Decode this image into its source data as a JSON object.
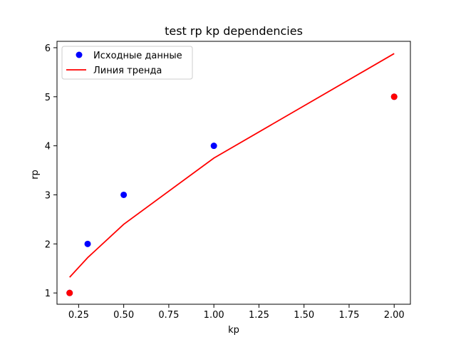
{
  "chart_data": {
    "type": "scatter",
    "title": "test rp kp dependencies",
    "xlabel": "kp",
    "ylabel": "rp",
    "xlim": [
      0.13,
      2.09
    ],
    "ylim": [
      0.77,
      6.13
    ],
    "xticks": [
      0.25,
      0.5,
      0.75,
      1.0,
      1.25,
      1.5,
      1.75,
      2.0
    ],
    "xtick_labels": [
      "0.25",
      "0.50",
      "0.75",
      "1.00",
      "1.25",
      "1.50",
      "1.75",
      "2.00"
    ],
    "yticks": [
      1,
      2,
      3,
      4,
      5,
      6
    ],
    "ytick_labels": [
      "1",
      "2",
      "3",
      "4",
      "5",
      "6"
    ],
    "grid": false,
    "legend_position": "top-left",
    "series": [
      {
        "name": "Исходные данные",
        "kind": "scatter",
        "color": "#0000ff",
        "x": [
          0.2,
          0.3,
          0.5,
          1.0,
          2.0
        ],
        "y": [
          1,
          2,
          3,
          4,
          5
        ]
      },
      {
        "name": "Линия тренда",
        "kind": "line",
        "color": "#ff0000",
        "x": [
          0.2,
          0.3,
          0.5,
          1.0,
          2.0
        ],
        "y": [
          1.32,
          1.72,
          2.4,
          3.75,
          5.88
        ]
      }
    ],
    "highlighted_points": {
      "color": "#ff0000",
      "x": [
        0.2,
        2.0
      ],
      "y": [
        1,
        5
      ]
    }
  }
}
